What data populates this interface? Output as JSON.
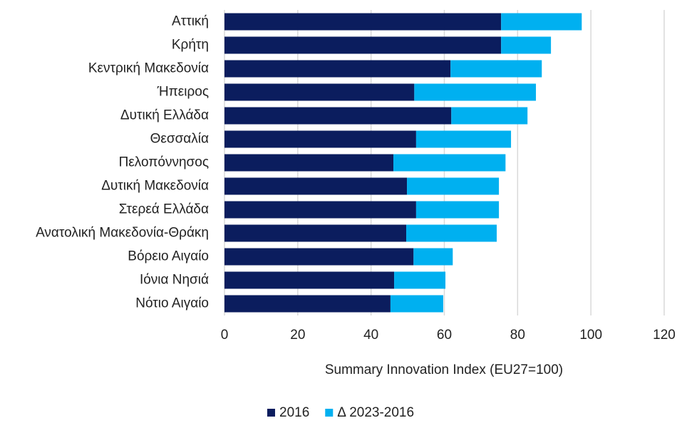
{
  "chart_data": {
    "type": "bar",
    "orientation": "horizontal",
    "stacked": true,
    "xlabel": "Summary Innovation Index (EU27=100)",
    "categories": [
      "Αττική",
      "Κρήτη",
      "Κεντρική Μακεδονία",
      "Ήπειρος",
      "Δυτική Ελλάδα",
      "Θεσσαλία",
      "Πελοπόννησος",
      "Δυτική Μακεδονία",
      "Στερεά Ελλάδα",
      "Ανατολική Μακεδονία-Θράκη",
      "Βόρειο Αιγαίο",
      "Ιόνια Νησιά",
      "Νότιο Αιγαίο"
    ],
    "series": [
      {
        "name": "2016",
        "color": "#0b1d5e",
        "values": [
          75.5,
          75.5,
          61.7,
          51.8,
          61.9,
          52.3,
          46.1,
          49.8,
          52.3,
          49.6,
          51.6,
          46.3,
          45.3
        ]
      },
      {
        "name": "Δ 2023-2016",
        "color": "#00b0f0",
        "values": [
          22.0,
          13.6,
          24.9,
          33.2,
          20.8,
          25.9,
          30.6,
          25.1,
          22.6,
          24.7,
          10.7,
          14.0,
          14.4
        ]
      }
    ],
    "xlim": [
      0,
      120
    ],
    "xticks": [
      0,
      20,
      40,
      60,
      80,
      100,
      120
    ],
    "grid": true,
    "legend": "bottom"
  }
}
